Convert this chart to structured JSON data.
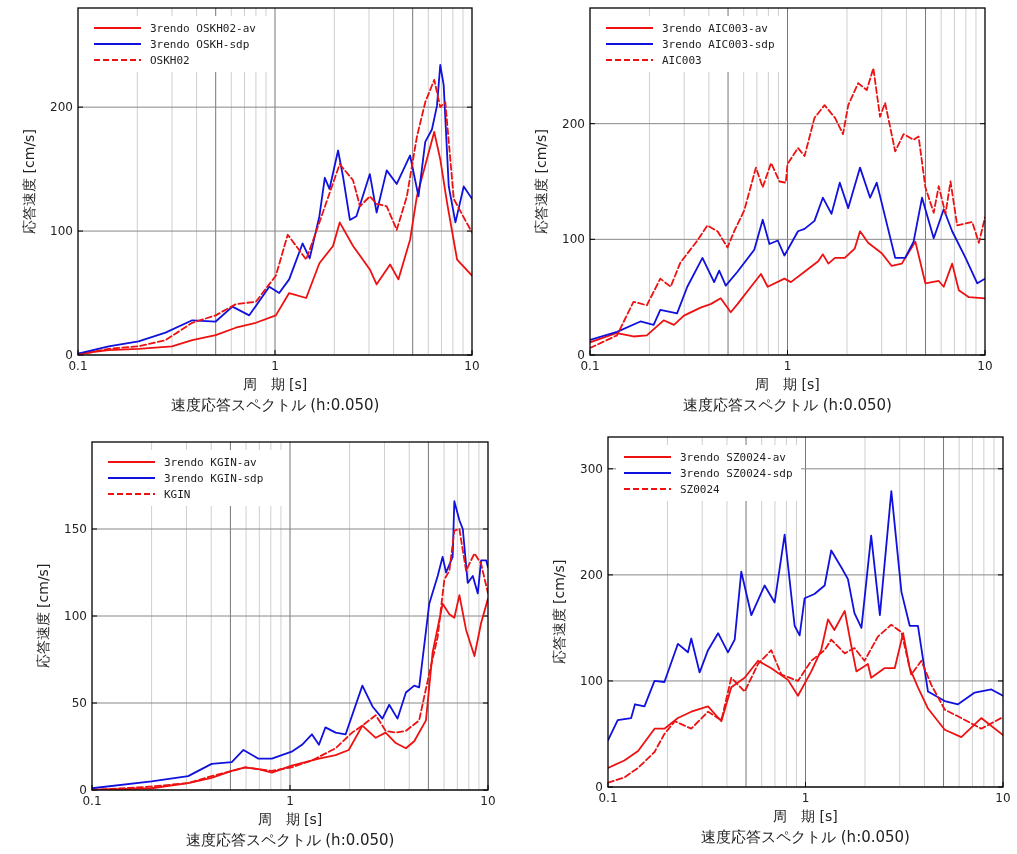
{
  "chart_data": [
    {
      "type": "line",
      "xlabel": "周　期 [s]",
      "ylabel": "応答速度 [cm/s]",
      "annotations": [
        "速度応答スペクトル (h:0.050)"
      ],
      "log": "x",
      "grid": true,
      "legend": "top left",
      "xlim": [
        0.1,
        10
      ],
      "xticks": [
        0.1,
        1,
        10
      ],
      "ylim": [
        0,
        280
      ],
      "yticks": [
        0,
        100,
        200
      ],
      "series": [
        {
          "name": "3rendo OSKH02-av",
          "color": "#ee1111",
          "line_style": "solid",
          "x": [
            0.1,
            0.143,
            0.203,
            0.3,
            0.38,
            0.5,
            0.632,
            0.8,
            1.01,
            1.18,
            1.44,
            1.68,
            1.97,
            2.13,
            2.49,
            3.03,
            3.28,
            3.84,
            4.23,
            4.85,
            5.25,
            5.9,
            6.43,
            6.9,
            7.47,
            8.4,
            10
          ],
          "values": [
            1,
            4,
            5,
            7,
            12,
            16,
            22,
            26,
            32,
            50,
            46,
            74,
            88,
            107,
            88,
            69,
            57,
            73,
            61,
            93,
            128,
            158,
            180,
            158,
            123,
            77,
            64
          ]
        },
        {
          "name": "3rendo OSKH-sdp",
          "color": "#1111dd",
          "line_style": "solid",
          "x": [
            0.1,
            0.143,
            0.203,
            0.278,
            0.38,
            0.5,
            0.608,
            0.74,
            0.935,
            1.05,
            1.18,
            1.38,
            1.5,
            1.68,
            1.79,
            1.89,
            2.09,
            2.22,
            2.4,
            2.59,
            3.03,
            3.28,
            3.69,
            4.15,
            4.85,
            5.35,
            5.79,
            6.26,
            6.64,
            6.9,
            7.18,
            7.62,
            8.24,
            9.08,
            10
          ],
          "values": [
            1,
            7,
            11,
            18,
            28,
            27,
            39,
            32,
            55,
            50,
            61,
            90,
            78,
            112,
            143,
            134,
            165,
            143,
            109,
            112,
            146,
            115,
            149,
            138,
            161,
            128,
            172,
            182,
            201,
            234,
            218,
            136,
            107,
            136,
            126
          ]
        },
        {
          "name": "OSKH02",
          "color": "#ee1111",
          "line_style": "dashed",
          "x": [
            0.1,
            0.143,
            0.203,
            0.278,
            0.38,
            0.5,
            0.632,
            0.8,
            1.01,
            1.16,
            1.28,
            1.44,
            1.68,
            2.13,
            2.49,
            2.7,
            3.03,
            3.28,
            3.69,
            4.15,
            4.67,
            5.25,
            5.79,
            6.43,
            6.9,
            7.32,
            8.08,
            9.08,
            10
          ],
          "values": [
            0,
            5,
            7,
            12,
            26,
            32,
            41,
            43,
            64,
            97,
            88,
            77,
            107,
            154,
            141,
            120,
            128,
            122,
            120,
            101,
            128,
            176,
            204,
            222,
            200,
            204,
            126,
            111,
            99
          ]
        }
      ]
    },
    {
      "type": "line",
      "xlabel": "周　期 [s]",
      "ylabel": "応答速度 [cm/s]",
      "annotations": [
        "速度応答スペクトル (h:0.050)"
      ],
      "log": "x",
      "grid": true,
      "legend": "top left",
      "xlim": [
        0.1,
        10
      ],
      "xticks": [
        0.1,
        1,
        10
      ],
      "ylim": [
        0,
        300
      ],
      "yticks": [
        0,
        100,
        200
      ],
      "series": [
        {
          "name": "3rendo AIC003-av",
          "color": "#ee1111",
          "line_style": "solid",
          "x": [
            0.1,
            0.137,
            0.166,
            0.194,
            0.236,
            0.266,
            0.299,
            0.363,
            0.408,
            0.459,
            0.516,
            0.558,
            0.653,
            0.734,
            0.794,
            0.965,
            1.04,
            1.22,
            1.43,
            1.51,
            1.61,
            1.74,
            1.95,
            2.19,
            2.33,
            2.56,
            3.0,
            3.37,
            3.79,
            4.44,
            4.99,
            5.83,
            6.18,
            6.82,
            7.37,
            8.29,
            10
          ],
          "values": [
            11,
            19,
            16,
            17,
            30,
            26,
            34,
            41,
            44,
            49,
            37,
            44,
            59,
            70,
            59,
            66,
            63,
            72,
            81,
            87,
            79,
            84,
            84,
            92,
            107,
            97,
            88,
            77,
            79,
            98,
            62,
            64,
            59,
            79,
            56,
            50,
            49
          ]
        },
        {
          "name": "3rendo AIC003-sdp",
          "color": "#1111dd",
          "line_style": "solid",
          "x": [
            0.1,
            0.137,
            0.18,
            0.21,
            0.227,
            0.276,
            0.311,
            0.371,
            0.425,
            0.451,
            0.487,
            0.558,
            0.679,
            0.749,
            0.81,
            0.893,
            0.965,
            1.13,
            1.22,
            1.37,
            1.51,
            1.67,
            1.84,
            2.03,
            2.33,
            2.62,
            2.83,
            3.51,
            3.94,
            4.35,
            4.8,
            5.5,
            6.18,
            6.82,
            7.97,
            9.14,
            10
          ],
          "values": [
            13,
            20,
            29,
            26,
            39,
            36,
            59,
            84,
            63,
            73,
            60,
            72,
            91,
            117,
            96,
            99,
            86,
            107,
            109,
            116,
            136,
            122,
            149,
            127,
            162,
            136,
            149,
            84,
            84,
            98,
            136,
            101,
            126,
            107,
            84,
            62,
            66
          ]
        },
        {
          "name": "AIC003",
          "color": "#ee1111",
          "line_style": "dashed",
          "x": [
            0.1,
            0.137,
            0.166,
            0.194,
            0.227,
            0.256,
            0.287,
            0.35,
            0.393,
            0.442,
            0.497,
            0.537,
            0.604,
            0.692,
            0.749,
            0.826,
            0.911,
            0.98,
            1.0,
            1.13,
            1.22,
            1.37,
            1.54,
            1.74,
            1.91,
            2.03,
            2.28,
            2.52,
            2.72,
            2.94,
            3.12,
            3.51,
            3.87,
            4.35,
            4.61,
            4.99,
            5.5,
            5.83,
            6.31,
            6.69,
            7.23,
            8.62,
            9.31,
            10
          ],
          "values": [
            6,
            17,
            46,
            43,
            66,
            59,
            80,
            99,
            112,
            107,
            93,
            107,
            125,
            162,
            145,
            166,
            150,
            149,
            165,
            179,
            172,
            205,
            216,
            205,
            191,
            216,
            235,
            229,
            248,
            206,
            218,
            176,
            191,
            186,
            189,
            145,
            123,
            146,
            122,
            150,
            112,
            115,
            97,
            119
          ]
        }
      ]
    },
    {
      "type": "line",
      "xlabel": "周　期 [s]",
      "ylabel": "応答速度 [cm/s]",
      "annotations": [
        "速度応答スペクトル (h:0.050)"
      ],
      "log": "x",
      "grid": true,
      "legend": "top left",
      "xlim": [
        0.1,
        10
      ],
      "xticks": [
        0.1,
        1,
        10
      ],
      "ylim": [
        0,
        200
      ],
      "yticks": [
        0,
        50,
        100,
        150
      ],
      "series": [
        {
          "name": "3rendo KGIN-av",
          "color": "#ee1111",
          "line_style": "solid",
          "x": [
            0.1,
            0.2,
            0.306,
            0.402,
            0.508,
            0.593,
            0.693,
            0.81,
            1.02,
            1.4,
            1.7,
            1.98,
            2.32,
            2.71,
            3.04,
            3.42,
            3.85,
            4.24,
            4.86,
            5.25,
            5.9,
            6.38,
            6.76,
            7.17,
            7.75,
            8.54,
            9.23,
            10
          ],
          "values": [
            0,
            1,
            4,
            7,
            11,
            13,
            12,
            10,
            14,
            18,
            20,
            23,
            37,
            30,
            33,
            27,
            24,
            28,
            40,
            79,
            107,
            101,
            99,
            112,
            92,
            77,
            96,
            110
          ]
        },
        {
          "name": "3rendo KGIN-sdp",
          "color": "#1111dd",
          "line_style": "solid",
          "x": [
            0.1,
            0.2,
            0.306,
            0.402,
            0.508,
            0.582,
            0.693,
            0.81,
            1.02,
            1.15,
            1.29,
            1.4,
            1.51,
            1.7,
            1.91,
            2.32,
            2.61,
            2.93,
            3.17,
            3.49,
            3.85,
            4.24,
            4.49,
            5.05,
            5.57,
            5.9,
            6.14,
            6.63,
            6.76,
            7.17,
            7.46,
            7.9,
            8.38,
            8.88,
            9.23,
            9.79,
            10
          ],
          "values": [
            1,
            5,
            8,
            15,
            16,
            23,
            18,
            18,
            22,
            26,
            32,
            26,
            36,
            33,
            32,
            60,
            48,
            41,
            49,
            41,
            56,
            60,
            59,
            107,
            123,
            134,
            125,
            134,
            166,
            155,
            150,
            119,
            123,
            113,
            132,
            132,
            128
          ]
        },
        {
          "name": "KGIN",
          "color": "#ee1111",
          "line_style": "dashed",
          "x": [
            0.1,
            0.2,
            0.306,
            0.402,
            0.508,
            0.593,
            0.81,
            1.02,
            1.29,
            1.7,
            2.06,
            2.32,
            2.71,
            3.04,
            3.42,
            3.85,
            4.49,
            5.05,
            5.57,
            6.02,
            6.38,
            6.76,
            7.17,
            7.75,
            8.54,
            9.23,
            10
          ],
          "values": [
            0,
            2,
            4,
            8,
            11,
            13,
            11,
            13,
            17,
            24,
            33,
            37,
            43,
            34,
            33,
            34,
            40,
            67,
            88,
            121,
            126,
            149,
            150,
            126,
            136,
            130,
            113
          ]
        }
      ]
    },
    {
      "type": "line",
      "xlabel": "周　期 [s]",
      "ylabel": "応答速度 [cm/s]",
      "annotations": [
        "速度応答スペクトル (h:0.050)"
      ],
      "log": "x",
      "grid": true,
      "legend": "top left",
      "xlim": [
        0.1,
        10
      ],
      "xticks": [
        0.1,
        1,
        10
      ],
      "ylim": [
        0,
        330
      ],
      "yticks": [
        0,
        100,
        200,
        300
      ],
      "series": [
        {
          "name": "3rendo SZ0024-av",
          "color": "#ee1111",
          "line_style": "solid",
          "x": [
            0.1,
            0.121,
            0.142,
            0.172,
            0.193,
            0.226,
            0.264,
            0.321,
            0.375,
            0.421,
            0.492,
            0.575,
            0.671,
            0.815,
            0.916,
            1.07,
            1.2,
            1.3,
            1.4,
            1.58,
            1.71,
            1.81,
            2.07,
            2.15,
            2.51,
            2.83,
            3.12,
            3.37,
            3.71,
            4.17,
            5.07,
            6.15,
            7.76,
            10
          ],
          "values": [
            18,
            25,
            34,
            55,
            55,
            65,
            71,
            76,
            62,
            94,
            103,
            119,
            112,
            101,
            86,
            109,
            129,
            158,
            148,
            166,
            132,
            109,
            116,
            103,
            112,
            112,
            145,
            112,
            94,
            74,
            54,
            47,
            65,
            49
          ]
        },
        {
          "name": "3rendo SZ0024-sdp",
          "color": "#1111dd",
          "line_style": "solid",
          "x": [
            0.1,
            0.112,
            0.131,
            0.137,
            0.153,
            0.172,
            0.193,
            0.226,
            0.254,
            0.264,
            0.291,
            0.321,
            0.361,
            0.405,
            0.438,
            0.473,
            0.532,
            0.621,
            0.698,
            0.784,
            0.881,
            0.934,
            0.99,
            1.11,
            1.25,
            1.35,
            1.52,
            1.64,
            1.77,
            1.92,
            2.15,
            2.38,
            2.72,
            3.06,
            3.37,
            3.71,
            4.17,
            5.07,
            5.92,
            7.19,
            8.73,
            10
          ],
          "values": [
            44,
            63,
            65,
            78,
            76,
            100,
            99,
            135,
            127,
            140,
            108,
            129,
            145,
            127,
            139,
            203,
            162,
            190,
            174,
            238,
            152,
            143,
            178,
            182,
            190,
            223,
            207,
            196,
            164,
            150,
            237,
            162,
            279,
            184,
            152,
            152,
            90,
            81,
            78,
            89,
            92,
            86
          ]
        },
        {
          "name": "SZ0024",
          "color": "#ee1111",
          "line_style": "dashed",
          "x": [
            0.1,
            0.121,
            0.142,
            0.172,
            0.193,
            0.218,
            0.264,
            0.321,
            0.375,
            0.421,
            0.492,
            0.575,
            0.671,
            0.755,
            0.916,
            1.07,
            1.25,
            1.35,
            1.58,
            1.77,
            1.99,
            2.33,
            2.72,
            3.06,
            3.43,
            3.86,
            4.34,
            5.07,
            6.15,
            7.76,
            10
          ],
          "values": [
            4,
            9,
            18,
            33,
            50,
            62,
            55,
            71,
            63,
            103,
            90,
            116,
            129,
            106,
            100,
            119,
            129,
            139,
            126,
            131,
            119,
            142,
            153,
            146,
            106,
            119,
            96,
            73,
            65,
            55,
            66
          ]
        }
      ]
    }
  ]
}
